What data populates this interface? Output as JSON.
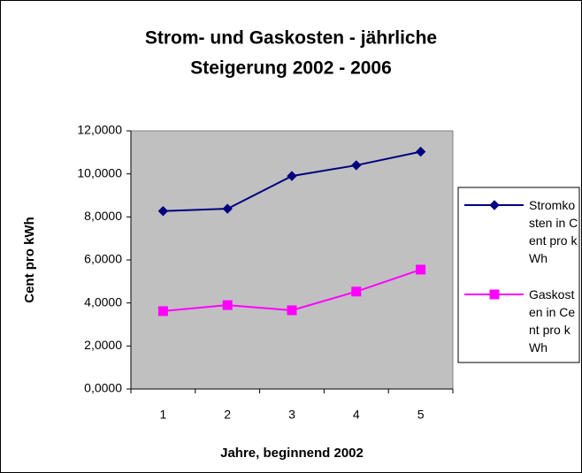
{
  "chart_data": {
    "type": "line",
    "title": [
      "Strom- und Gaskosten - jährliche",
      "Steigerung 2002 - 2006"
    ],
    "x_label": "Jahre, beginnend 2002",
    "y_label": "Cent pro kWh",
    "categories": [
      1,
      2,
      3,
      4,
      5
    ],
    "series": [
      {
        "name": "Stromkosten in Cent pro kWh",
        "color": "#000080",
        "marker": "diamond",
        "values": [
          8.27,
          8.38,
          9.9,
          10.4,
          11.03
        ]
      },
      {
        "name": "Gaskosten in Cent pro kWh",
        "color": "#ff00ff",
        "marker": "square",
        "values": [
          3.62,
          3.9,
          3.66,
          4.53,
          5.55
        ]
      }
    ],
    "ylim": [
      0,
      12
    ],
    "yticks": [
      {
        "value": 0,
        "label": "0,0000"
      },
      {
        "value": 2,
        "label": "2,0000"
      },
      {
        "value": 4,
        "label": "4,0000"
      },
      {
        "value": 6,
        "label": "6,0000"
      },
      {
        "value": 8,
        "label": "8,0000"
      },
      {
        "value": 10,
        "label": "10,0000"
      },
      {
        "value": 12,
        "label": "12,0000"
      }
    ],
    "legend": "right"
  }
}
